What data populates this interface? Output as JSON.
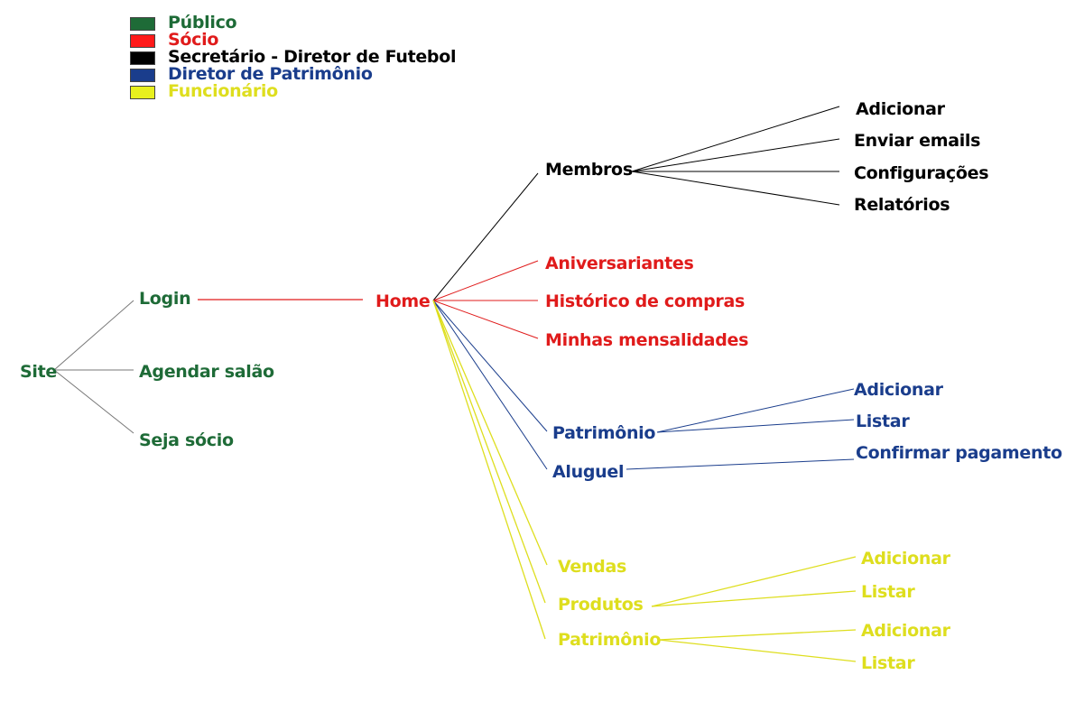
{
  "colors": {
    "publico": "#1e6b37",
    "socio": "#e01b1b",
    "secretario": "#000000",
    "patrimonio": "#1a3d8c",
    "funcionario": "#dede1e"
  },
  "legend": [
    {
      "key": "publico",
      "label": "Público",
      "color": "#1e6b37"
    },
    {
      "key": "socio",
      "label": "Sócio",
      "color": "#e01b1b"
    },
    {
      "key": "secretario",
      "label": "Secretário - Diretor de Futebol",
      "color": "#000000"
    },
    {
      "key": "patrimonio",
      "label": "Diretor de Patrimônio",
      "color": "#1a3d8c"
    },
    {
      "key": "funcionario",
      "label": "Funcionário",
      "color": "#dede1e"
    }
  ],
  "nodes": {
    "site": "Site",
    "login": "Login",
    "agendar_salao": "Agendar salão",
    "seja_socio": "Seja sócio",
    "home": "Home",
    "membros": "Membros",
    "membros_adicionar": "Adicionar",
    "membros_enviar_emails": "Enviar emails",
    "membros_configuracoes": "Configurações",
    "membros_relatorios": "Relatórios",
    "aniversariantes": "Aniversariantes",
    "historico_compras": "Histórico de compras",
    "minhas_mensalidades": "Minhas mensalidades",
    "patrimonio_dir": "Patrimônio",
    "patrimonio_dir_adicionar": "Adicionar",
    "patrimonio_dir_listar": "Listar",
    "aluguel": "Aluguel",
    "aluguel_confirmar": "Confirmar pagamento",
    "vendas": "Vendas",
    "produtos": "Produtos",
    "produtos_adicionar": "Adicionar",
    "produtos_listar": "Listar",
    "patrimonio_func": "Patrimônio",
    "patrimonio_func_adicionar": "Adicionar",
    "patrimonio_func_listar": "Listar"
  }
}
